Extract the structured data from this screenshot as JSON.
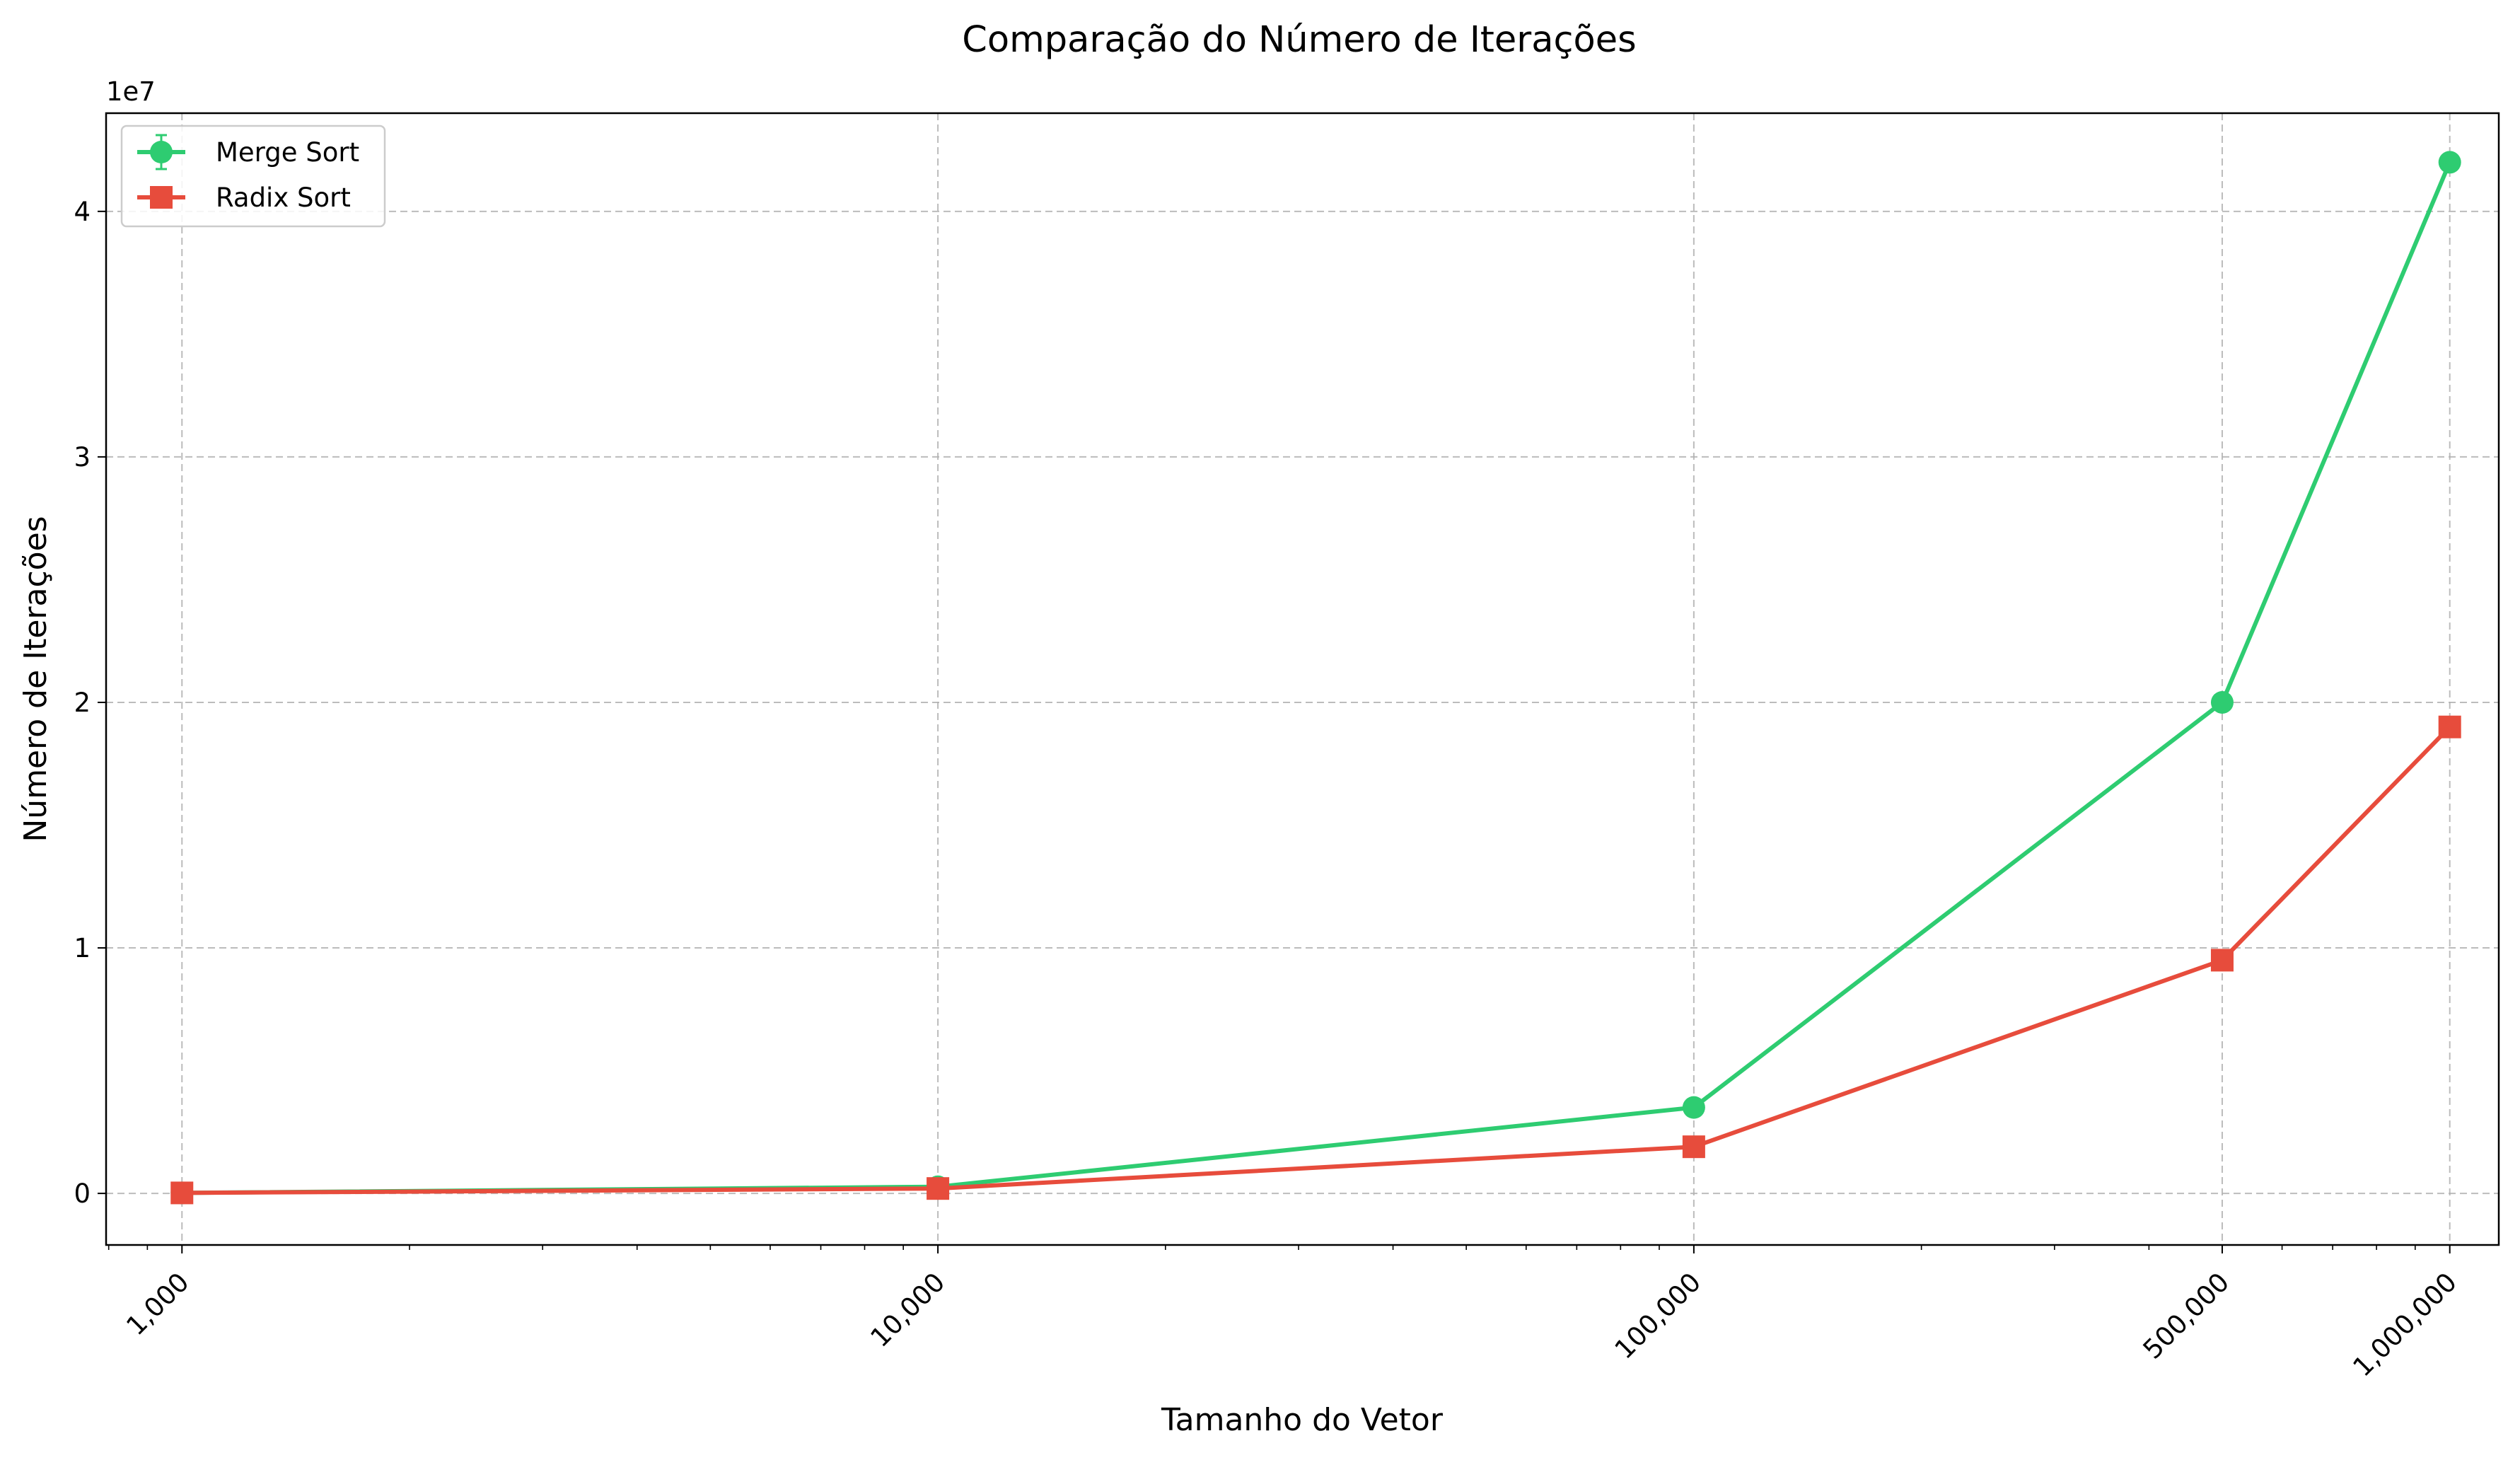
{
  "chart_data": {
    "type": "line",
    "title": "Comparação do Número de Iterações",
    "xlabel": "Tamanho do Vetor",
    "ylabel": "Número de Iterações",
    "x_scale": "log",
    "x": [
      1000,
      10000,
      100000,
      500000,
      1000000
    ],
    "x_tick_labels": [
      "1,000",
      "10,000",
      "100,000",
      "500,000",
      "1,000,000"
    ],
    "y_offset_label": "1e7",
    "y_ticks": [
      0,
      10000000,
      20000000,
      30000000,
      40000000
    ],
    "y_tick_labels": [
      "0",
      "1",
      "2",
      "3",
      "4"
    ],
    "ylim": [
      -2100000,
      44000000
    ],
    "grid": true,
    "legend_position": "top-left",
    "series": [
      {
        "name": "Merge Sort",
        "color": "#2ecc71",
        "marker": "circle",
        "values": [
          20000,
          270000,
          3500000,
          20000000,
          42000000
        ]
      },
      {
        "name": "Radix Sort",
        "color": "#e74c3c",
        "marker": "square",
        "values": [
          20000,
          200000,
          1900000,
          9500000,
          19000000
        ]
      }
    ]
  }
}
